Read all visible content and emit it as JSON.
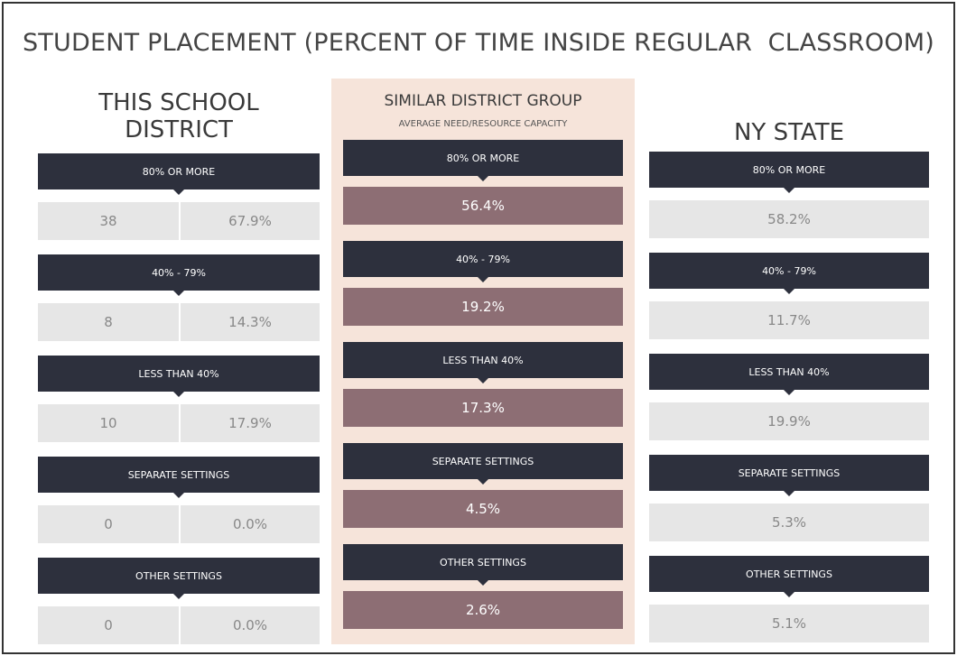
{
  "title": "STUDENT PLACEMENT (PERCENT OF TIME INSIDE REGULAR  CLASSROOM)",
  "panels": [
    {
      "title": "THIS SCHOOL DISTRICT",
      "rows": [
        {
          "label": "80% OR MORE",
          "count": "38",
          "percent": "67.9%"
        },
        {
          "label": "40% - 79%",
          "count": "8",
          "percent": "14.3%"
        },
        {
          "label": "LESS THAN 40%",
          "count": "10",
          "percent": "17.9%"
        },
        {
          "label": "SEPARATE SETTINGS",
          "count": "0",
          "percent": "0.0%"
        },
        {
          "label": "OTHER SETTINGS",
          "count": "0",
          "percent": "0.0%"
        }
      ]
    },
    {
      "title": "SIMILAR DISTRICT GROUP",
      "subtitle": "AVERAGE NEED/RESOURCE CAPACITY",
      "rows": [
        {
          "label": "80% OR MORE",
          "percent": "56.4%"
        },
        {
          "label": "40% - 79%",
          "percent": "19.2%"
        },
        {
          "label": "LESS THAN 40%",
          "percent": "17.3%"
        },
        {
          "label": "SEPARATE SETTINGS",
          "percent": "4.5%"
        },
        {
          "label": "OTHER SETTINGS",
          "percent": "2.6%"
        }
      ]
    },
    {
      "title": "NY STATE",
      "rows": [
        {
          "label": "80% OR MORE",
          "percent": "58.2%"
        },
        {
          "label": "40% - 79%",
          "percent": "11.7%"
        },
        {
          "label": "LESS THAN 40%",
          "percent": "19.9%"
        },
        {
          "label": "SEPARATE SETTINGS",
          "percent": "5.3%"
        },
        {
          "label": "OTHER SETTINGS",
          "percent": "5.1%"
        }
      ]
    }
  ]
}
